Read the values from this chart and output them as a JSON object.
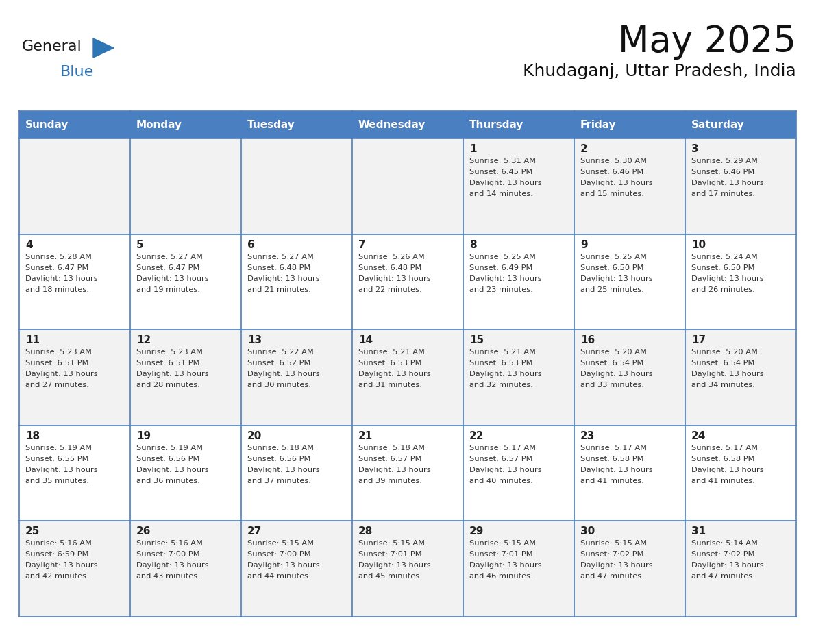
{
  "title": "May 2025",
  "subtitle": "Khudaganj, Uttar Pradesh, India",
  "days_of_week": [
    "Sunday",
    "Monday",
    "Tuesday",
    "Wednesday",
    "Thursday",
    "Friday",
    "Saturday"
  ],
  "header_bg_color": "#4a7fc1",
  "header_text_color": "#FFFFFF",
  "cell_bg_light": "#F2F2F2",
  "cell_bg_white": "#FFFFFF",
  "cell_border_color": "#4a7fc1",
  "day_number_color": "#222222",
  "cell_text_color": "#333333",
  "title_color": "#111111",
  "subtitle_color": "#111111",
  "logo_general_color": "#1a1a1a",
  "logo_blue_color": "#2E75B6",
  "weeks": [
    {
      "days": [
        {
          "date": "",
          "sunrise": "",
          "sunset": "",
          "daylight_line1": "",
          "daylight_line2": ""
        },
        {
          "date": "",
          "sunrise": "",
          "sunset": "",
          "daylight_line1": "",
          "daylight_line2": ""
        },
        {
          "date": "",
          "sunrise": "",
          "sunset": "",
          "daylight_line1": "",
          "daylight_line2": ""
        },
        {
          "date": "",
          "sunrise": "",
          "sunset": "",
          "daylight_line1": "",
          "daylight_line2": ""
        },
        {
          "date": "1",
          "sunrise": "Sunrise: 5:31 AM",
          "sunset": "Sunset: 6:45 PM",
          "daylight_line1": "Daylight: 13 hours",
          "daylight_line2": "and 14 minutes."
        },
        {
          "date": "2",
          "sunrise": "Sunrise: 5:30 AM",
          "sunset": "Sunset: 6:46 PM",
          "daylight_line1": "Daylight: 13 hours",
          "daylight_line2": "and 15 minutes."
        },
        {
          "date": "3",
          "sunrise": "Sunrise: 5:29 AM",
          "sunset": "Sunset: 6:46 PM",
          "daylight_line1": "Daylight: 13 hours",
          "daylight_line2": "and 17 minutes."
        }
      ]
    },
    {
      "days": [
        {
          "date": "4",
          "sunrise": "Sunrise: 5:28 AM",
          "sunset": "Sunset: 6:47 PM",
          "daylight_line1": "Daylight: 13 hours",
          "daylight_line2": "and 18 minutes."
        },
        {
          "date": "5",
          "sunrise": "Sunrise: 5:27 AM",
          "sunset": "Sunset: 6:47 PM",
          "daylight_line1": "Daylight: 13 hours",
          "daylight_line2": "and 19 minutes."
        },
        {
          "date": "6",
          "sunrise": "Sunrise: 5:27 AM",
          "sunset": "Sunset: 6:48 PM",
          "daylight_line1": "Daylight: 13 hours",
          "daylight_line2": "and 21 minutes."
        },
        {
          "date": "7",
          "sunrise": "Sunrise: 5:26 AM",
          "sunset": "Sunset: 6:48 PM",
          "daylight_line1": "Daylight: 13 hours",
          "daylight_line2": "and 22 minutes."
        },
        {
          "date": "8",
          "sunrise": "Sunrise: 5:25 AM",
          "sunset": "Sunset: 6:49 PM",
          "daylight_line1": "Daylight: 13 hours",
          "daylight_line2": "and 23 minutes."
        },
        {
          "date": "9",
          "sunrise": "Sunrise: 5:25 AM",
          "sunset": "Sunset: 6:50 PM",
          "daylight_line1": "Daylight: 13 hours",
          "daylight_line2": "and 25 minutes."
        },
        {
          "date": "10",
          "sunrise": "Sunrise: 5:24 AM",
          "sunset": "Sunset: 6:50 PM",
          "daylight_line1": "Daylight: 13 hours",
          "daylight_line2": "and 26 minutes."
        }
      ]
    },
    {
      "days": [
        {
          "date": "11",
          "sunrise": "Sunrise: 5:23 AM",
          "sunset": "Sunset: 6:51 PM",
          "daylight_line1": "Daylight: 13 hours",
          "daylight_line2": "and 27 minutes."
        },
        {
          "date": "12",
          "sunrise": "Sunrise: 5:23 AM",
          "sunset": "Sunset: 6:51 PM",
          "daylight_line1": "Daylight: 13 hours",
          "daylight_line2": "and 28 minutes."
        },
        {
          "date": "13",
          "sunrise": "Sunrise: 5:22 AM",
          "sunset": "Sunset: 6:52 PM",
          "daylight_line1": "Daylight: 13 hours",
          "daylight_line2": "and 30 minutes."
        },
        {
          "date": "14",
          "sunrise": "Sunrise: 5:21 AM",
          "sunset": "Sunset: 6:53 PM",
          "daylight_line1": "Daylight: 13 hours",
          "daylight_line2": "and 31 minutes."
        },
        {
          "date": "15",
          "sunrise": "Sunrise: 5:21 AM",
          "sunset": "Sunset: 6:53 PM",
          "daylight_line1": "Daylight: 13 hours",
          "daylight_line2": "and 32 minutes."
        },
        {
          "date": "16",
          "sunrise": "Sunrise: 5:20 AM",
          "sunset": "Sunset: 6:54 PM",
          "daylight_line1": "Daylight: 13 hours",
          "daylight_line2": "and 33 minutes."
        },
        {
          "date": "17",
          "sunrise": "Sunrise: 5:20 AM",
          "sunset": "Sunset: 6:54 PM",
          "daylight_line1": "Daylight: 13 hours",
          "daylight_line2": "and 34 minutes."
        }
      ]
    },
    {
      "days": [
        {
          "date": "18",
          "sunrise": "Sunrise: 5:19 AM",
          "sunset": "Sunset: 6:55 PM",
          "daylight_line1": "Daylight: 13 hours",
          "daylight_line2": "and 35 minutes."
        },
        {
          "date": "19",
          "sunrise": "Sunrise: 5:19 AM",
          "sunset": "Sunset: 6:56 PM",
          "daylight_line1": "Daylight: 13 hours",
          "daylight_line2": "and 36 minutes."
        },
        {
          "date": "20",
          "sunrise": "Sunrise: 5:18 AM",
          "sunset": "Sunset: 6:56 PM",
          "daylight_line1": "Daylight: 13 hours",
          "daylight_line2": "and 37 minutes."
        },
        {
          "date": "21",
          "sunrise": "Sunrise: 5:18 AM",
          "sunset": "Sunset: 6:57 PM",
          "daylight_line1": "Daylight: 13 hours",
          "daylight_line2": "and 39 minutes."
        },
        {
          "date": "22",
          "sunrise": "Sunrise: 5:17 AM",
          "sunset": "Sunset: 6:57 PM",
          "daylight_line1": "Daylight: 13 hours",
          "daylight_line2": "and 40 minutes."
        },
        {
          "date": "23",
          "sunrise": "Sunrise: 5:17 AM",
          "sunset": "Sunset: 6:58 PM",
          "daylight_line1": "Daylight: 13 hours",
          "daylight_line2": "and 41 minutes."
        },
        {
          "date": "24",
          "sunrise": "Sunrise: 5:17 AM",
          "sunset": "Sunset: 6:58 PM",
          "daylight_line1": "Daylight: 13 hours",
          "daylight_line2": "and 41 minutes."
        }
      ]
    },
    {
      "days": [
        {
          "date": "25",
          "sunrise": "Sunrise: 5:16 AM",
          "sunset": "Sunset: 6:59 PM",
          "daylight_line1": "Daylight: 13 hours",
          "daylight_line2": "and 42 minutes."
        },
        {
          "date": "26",
          "sunrise": "Sunrise: 5:16 AM",
          "sunset": "Sunset: 7:00 PM",
          "daylight_line1": "Daylight: 13 hours",
          "daylight_line2": "and 43 minutes."
        },
        {
          "date": "27",
          "sunrise": "Sunrise: 5:15 AM",
          "sunset": "Sunset: 7:00 PM",
          "daylight_line1": "Daylight: 13 hours",
          "daylight_line2": "and 44 minutes."
        },
        {
          "date": "28",
          "sunrise": "Sunrise: 5:15 AM",
          "sunset": "Sunset: 7:01 PM",
          "daylight_line1": "Daylight: 13 hours",
          "daylight_line2": "and 45 minutes."
        },
        {
          "date": "29",
          "sunrise": "Sunrise: 5:15 AM",
          "sunset": "Sunset: 7:01 PM",
          "daylight_line1": "Daylight: 13 hours",
          "daylight_line2": "and 46 minutes."
        },
        {
          "date": "30",
          "sunrise": "Sunrise: 5:15 AM",
          "sunset": "Sunset: 7:02 PM",
          "daylight_line1": "Daylight: 13 hours",
          "daylight_line2": "and 47 minutes."
        },
        {
          "date": "31",
          "sunrise": "Sunrise: 5:14 AM",
          "sunset": "Sunset: 7:02 PM",
          "daylight_line1": "Daylight: 13 hours",
          "daylight_line2": "and 47 minutes."
        }
      ]
    }
  ]
}
